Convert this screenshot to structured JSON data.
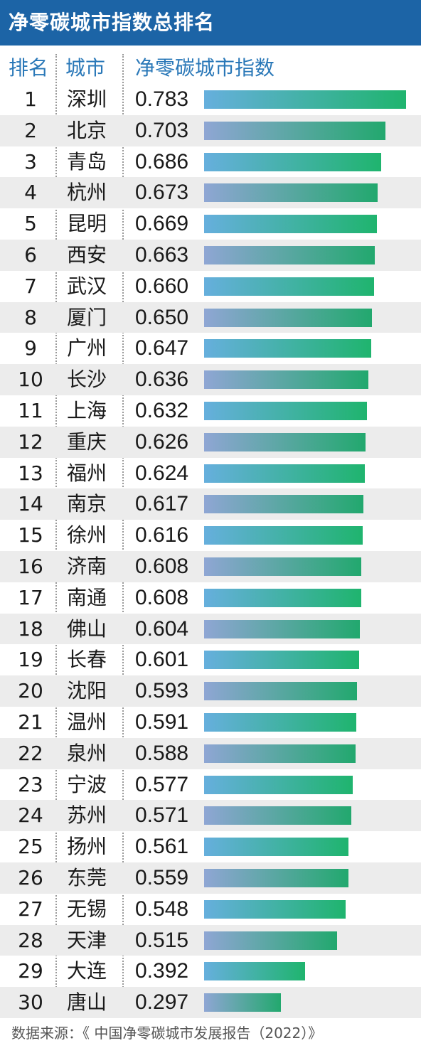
{
  "title": "净零碳城市指数总排名",
  "headers": {
    "rank": "排名",
    "city": "城市",
    "index": "净零碳城市指数"
  },
  "source": "数据来源：《 中国净零碳城市发展报告（2022）》",
  "colors": {
    "title_bg": "#1c64a6",
    "header_text": "#2a78b8",
    "bar_start_a": "#66afdd",
    "bar_start_b": "#8fa6d4",
    "bar_end": "#1fb46e",
    "alt_row_bg": "#ececec"
  },
  "chart_data": {
    "type": "bar",
    "orientation": "horizontal",
    "title": "净零碳城市指数总排名",
    "xlabel": "",
    "ylabel": "",
    "xlim": [
      0,
      0.783
    ],
    "categories": [
      "深圳",
      "北京",
      "青岛",
      "杭州",
      "昆明",
      "西安",
      "武汉",
      "厦门",
      "广州",
      "长沙",
      "上海",
      "重庆",
      "福州",
      "南京",
      "徐州",
      "济南",
      "南通",
      "佛山",
      "长春",
      "沈阳",
      "温州",
      "泉州",
      "宁波",
      "苏州",
      "扬州",
      "东莞",
      "无锡",
      "天津",
      "大连",
      "唐山"
    ],
    "ranks": [
      "1",
      "2",
      "3",
      "4",
      "5",
      "6",
      "7",
      "8",
      "9",
      "10",
      "11",
      "12",
      "13",
      "14",
      "15",
      "16",
      "17",
      "18",
      "19",
      "20",
      "21",
      "22",
      "23",
      "24",
      "25",
      "26",
      "27",
      "28",
      "29",
      "30"
    ],
    "labels": [
      "0.783",
      "0.703",
      "0.686",
      "0.673",
      "0.669",
      "0.663",
      "0.660",
      "0.650",
      "0.647",
      "0.636",
      "0.632",
      "0.626",
      "0.624",
      "0.617",
      "0.616",
      "0.608",
      "0.608",
      "0.604",
      "0.601",
      "0.593",
      "0.591",
      "0.588",
      "0.577",
      "0.571",
      "0.561",
      "0.559",
      "0.548",
      "0.515",
      "0.392",
      "0.297"
    ],
    "values": [
      0.783,
      0.703,
      0.686,
      0.673,
      0.669,
      0.663,
      0.66,
      0.65,
      0.647,
      0.636,
      0.632,
      0.626,
      0.624,
      0.617,
      0.616,
      0.608,
      0.608,
      0.604,
      0.601,
      0.593,
      0.591,
      0.588,
      0.577,
      0.571,
      0.561,
      0.559,
      0.548,
      0.515,
      0.392,
      0.297
    ],
    "grid": false,
    "legend": "none"
  }
}
